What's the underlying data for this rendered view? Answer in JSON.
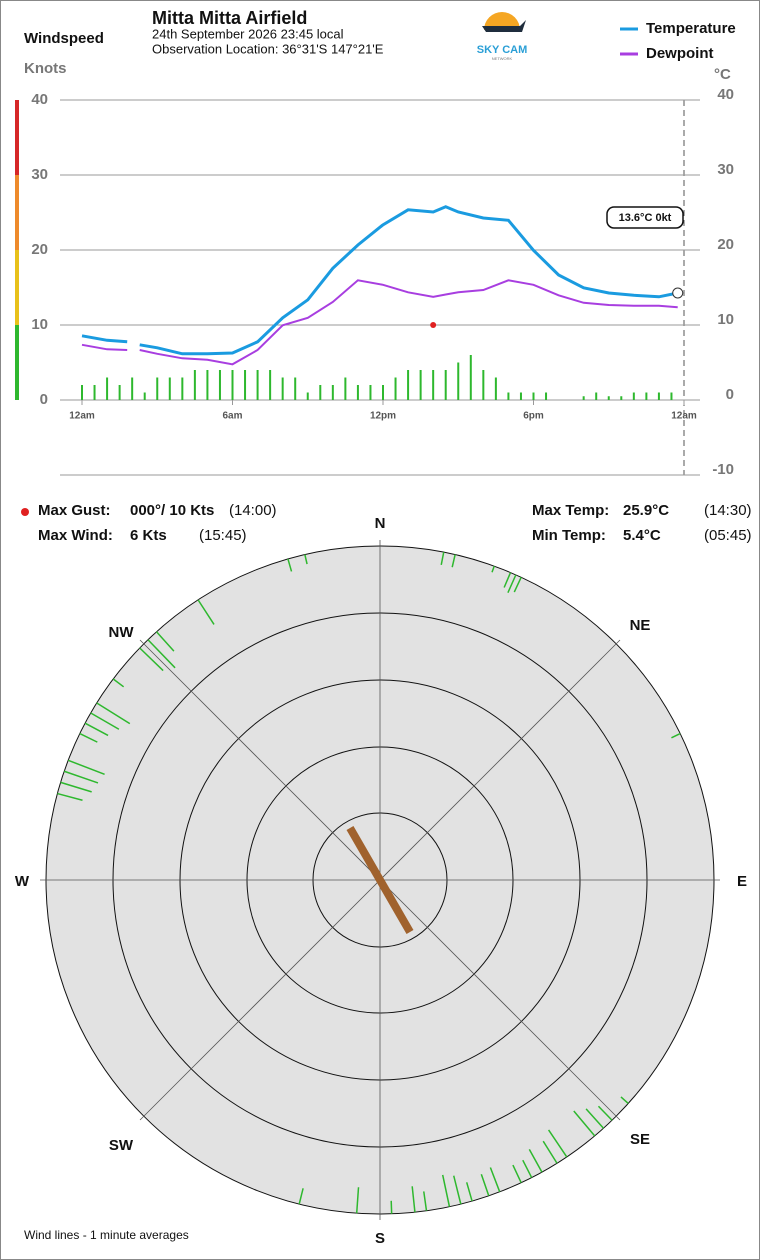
{
  "header": {
    "title": "Mitta Mitta Airfield",
    "date": "24th September 2026  23:45 local",
    "location": "Observation Location:  36°31'S 147°21'E"
  },
  "logo": {
    "name": "SKY CAM",
    "tagline": "NETWORK"
  },
  "readout": "13.6°C  0kt",
  "stats": {
    "gust_label": "Max Gust:",
    "gust_value": "000°/  10 Kts",
    "gust_time": "(14:00)",
    "wind_label": "Max Wind:",
    "wind_value": "6 Kts",
    "wind_time": "(15:45)",
    "max_temp_label": "Max Temp:",
    "max_temp_value": "25.9°C",
    "max_temp_time": "(14:30)",
    "min_temp_label": "Min Temp:",
    "min_temp_value": "5.4°C",
    "min_temp_time": "(05:45)"
  },
  "footer": "Wind lines - 1 minute averages",
  "chart_data": [
    {
      "type": "bar",
      "title": "Windspeed",
      "ylabel": "Knots",
      "color": "#2eb82e",
      "xlim": [
        0,
        24
      ],
      "xticks": [
        {
          "value": 0,
          "label": "12am"
        },
        {
          "value": 6,
          "label": "6am"
        },
        {
          "value": 12,
          "label": "12pm"
        },
        {
          "value": 18,
          "label": "6pm"
        },
        {
          "value": 24,
          "label": "12am"
        }
      ],
      "ylim": [
        0,
        40
      ],
      "yticks": [
        0,
        10,
        20,
        30,
        40
      ],
      "grid": true,
      "x": [
        0,
        0.5,
        1,
        1.5,
        2,
        2.5,
        3,
        3.5,
        4,
        4.5,
        5,
        5.5,
        6,
        6.5,
        7,
        7.5,
        8,
        8.5,
        9,
        9.5,
        10,
        10.5,
        11,
        11.5,
        12,
        12.5,
        13,
        13.5,
        14,
        14.5,
        15,
        15.5,
        16,
        16.5,
        17,
        17.5,
        18,
        18.5,
        19,
        19.5,
        20,
        20.5,
        21,
        21.5,
        22,
        22.5,
        23,
        23.5
      ],
      "values": [
        2,
        2,
        3,
        2,
        3,
        1,
        3,
        3,
        3,
        4,
        4,
        4,
        4,
        4,
        4,
        4,
        3,
        3,
        1,
        2,
        2,
        3,
        2,
        2,
        2,
        3,
        4,
        4,
        4,
        4,
        5,
        6,
        4,
        3,
        1,
        1,
        1,
        1,
        0,
        0,
        0.5,
        1,
        0.5,
        0.5,
        1,
        1,
        1,
        1
      ],
      "max_gust": {
        "x": 14,
        "value": 10
      }
    },
    {
      "type": "line",
      "ylabel": "°C",
      "xlim": [
        0,
        24
      ],
      "ylim": [
        -10,
        40
      ],
      "yticks": [
        -10,
        0,
        10,
        20,
        30,
        40
      ],
      "x": [
        0,
        1,
        1.8,
        2,
        2.3,
        3,
        4,
        5,
        6,
        7,
        8,
        9,
        10,
        11,
        12,
        13,
        14,
        14.5,
        15,
        16,
        17,
        18,
        19,
        20,
        21,
        22,
        23,
        23.75
      ],
      "series": [
        {
          "name": "Temperature",
          "color": "#1a9be0",
          "values": [
            7.9,
            7.3,
            7.1,
            null,
            6.7,
            6.3,
            5.5,
            5.5,
            5.6,
            7.1,
            10.3,
            12.7,
            16.9,
            20,
            22.7,
            24.7,
            24.4,
            25.1,
            24.4,
            23.6,
            23.3,
            19.3,
            16,
            14.3,
            13.6,
            13.3,
            13.1,
            13.6
          ]
        },
        {
          "name": "Dewpoint",
          "color": "#a83ee0",
          "values": [
            6.7,
            6.1,
            6.0,
            null,
            6.0,
            5.5,
            4.9,
            4.7,
            4.1,
            6.0,
            9.3,
            10.3,
            12.4,
            15.3,
            14.7,
            13.7,
            13.1,
            13.4,
            13.7,
            14,
            15.3,
            14.7,
            13.3,
            12.3,
            12,
            11.9,
            11.9,
            11.7
          ]
        }
      ],
      "legend": "top-right"
    },
    {
      "type": "polar",
      "labels": [
        "N",
        "NE",
        "E",
        "SE",
        "S",
        "SW",
        "W",
        "NW"
      ],
      "vane_direction": 330,
      "wind_lines": {
        "color": "#2eb82e",
        "direction": [
          344,
          347,
          11,
          13,
          20,
          23,
          24,
          25,
          327,
          314,
          316,
          318,
          307,
          302,
          300,
          298,
          296,
          291,
          289,
          287,
          285,
          64,
          132,
          136,
          138,
          140,
          146,
          148,
          151,
          153,
          155,
          159,
          161,
          164,
          166,
          168,
          172,
          174,
          178,
          184,
          194
        ],
        "speed": [
          2,
          1.5,
          2,
          2,
          1,
          2.5,
          3,
          2.5,
          4.5,
          5,
          6,
          4,
          2,
          6,
          5,
          4,
          3,
          6,
          5.5,
          5,
          4,
          1.5,
          1.5,
          3,
          4,
          5,
          5,
          4,
          4,
          3,
          3,
          4,
          3.5,
          3,
          4.5,
          5,
          3,
          4,
          2,
          4,
          2.5
        ]
      }
    }
  ]
}
